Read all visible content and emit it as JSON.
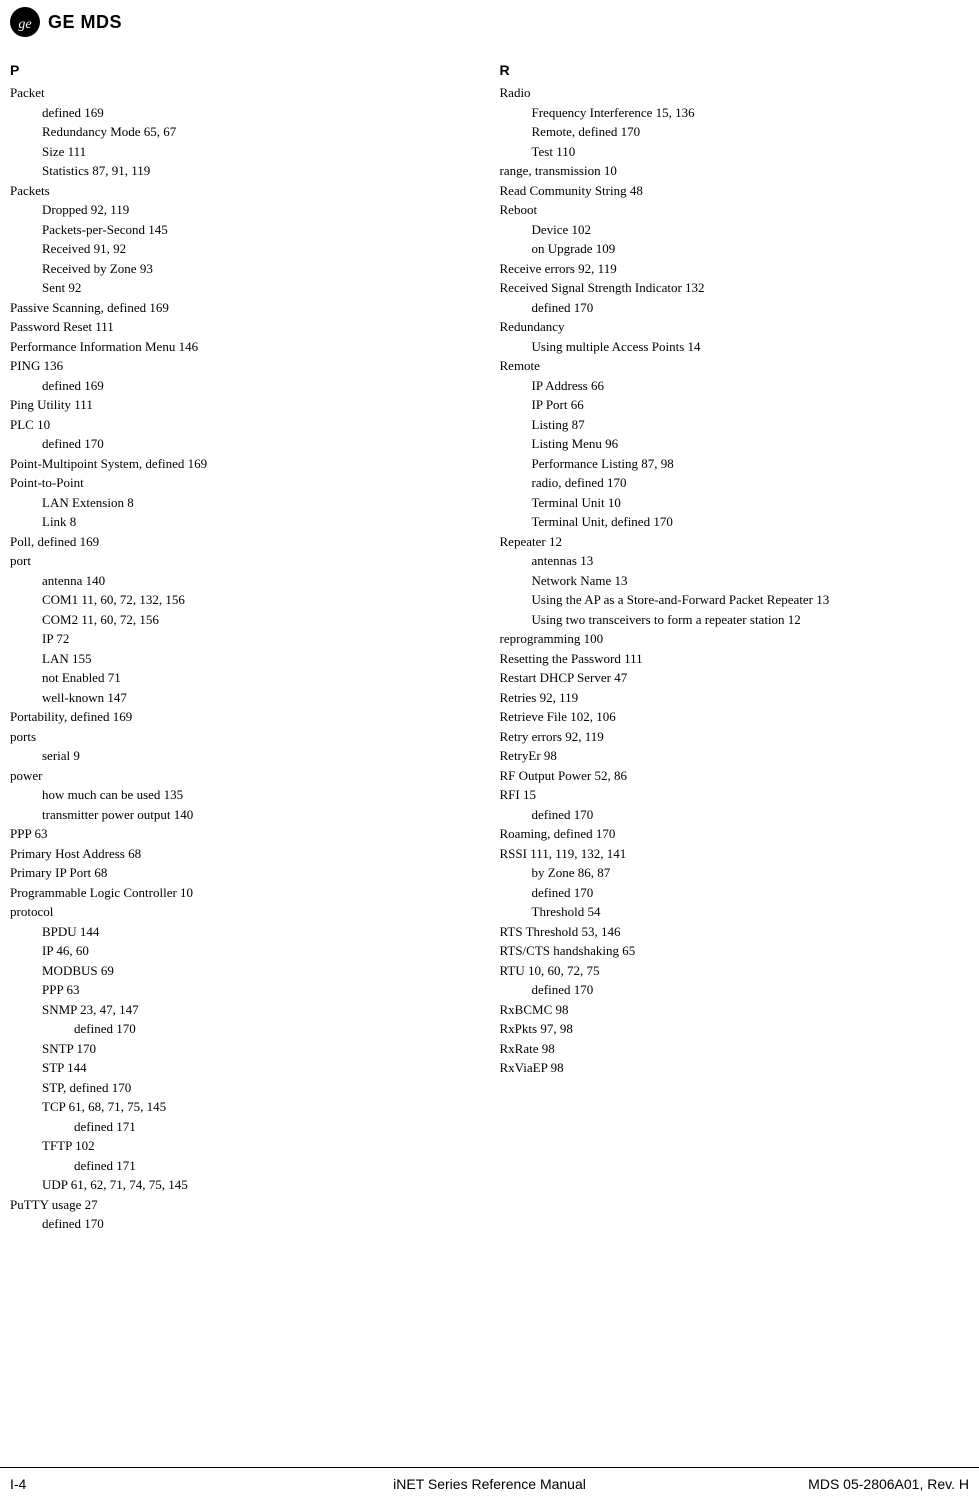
{
  "header": {
    "logo_glyph": "⅊",
    "brand": "GE MDS"
  },
  "columns": {
    "left": {
      "letter": "P",
      "lines": [
        {
          "lvl": 0,
          "t": "Packet"
        },
        {
          "lvl": 1,
          "t": "defined 169"
        },
        {
          "lvl": 1,
          "t": "Redundancy Mode 65, 67"
        },
        {
          "lvl": 1,
          "t": "Size 111"
        },
        {
          "lvl": 1,
          "t": "Statistics 87, 91, 119"
        },
        {
          "lvl": 0,
          "t": "Packets"
        },
        {
          "lvl": 1,
          "t": "Dropped 92, 119"
        },
        {
          "lvl": 1,
          "t": "Packets-per-Second 145"
        },
        {
          "lvl": 1,
          "t": "Received 91, 92"
        },
        {
          "lvl": 1,
          "t": "Received by Zone 93"
        },
        {
          "lvl": 1,
          "t": "Sent 92"
        },
        {
          "lvl": 0,
          "t": "Passive Scanning, defined 169"
        },
        {
          "lvl": 0,
          "t": "Password Reset 111"
        },
        {
          "lvl": 0,
          "t": "Performance Information Menu 146"
        },
        {
          "lvl": 0,
          "t": "PING 136"
        },
        {
          "lvl": 1,
          "t": "defined 169"
        },
        {
          "lvl": 0,
          "t": "Ping Utility 111"
        },
        {
          "lvl": 0,
          "t": "PLC 10"
        },
        {
          "lvl": 1,
          "t": "defined 170"
        },
        {
          "lvl": 0,
          "t": "Point-Multipoint System, defined 169"
        },
        {
          "lvl": 0,
          "t": "Point-to-Point"
        },
        {
          "lvl": 1,
          "t": "LAN Extension 8"
        },
        {
          "lvl": 1,
          "t": "Link 8"
        },
        {
          "lvl": 0,
          "t": "Poll, defined 169"
        },
        {
          "lvl": 0,
          "t": "port"
        },
        {
          "lvl": 1,
          "t": "antenna 140"
        },
        {
          "lvl": 1,
          "t": "COM1 11, 60, 72, 132, 156"
        },
        {
          "lvl": 1,
          "t": "COM2 11, 60, 72, 156"
        },
        {
          "lvl": 1,
          "t": "IP 72"
        },
        {
          "lvl": 1,
          "t": "LAN 155"
        },
        {
          "lvl": 1,
          "t": "not Enabled 71"
        },
        {
          "lvl": 1,
          "t": "well-known 147"
        },
        {
          "lvl": 0,
          "t": "Portability, defined 169"
        },
        {
          "lvl": 0,
          "t": "ports"
        },
        {
          "lvl": 1,
          "t": "serial 9"
        },
        {
          "lvl": 0,
          "t": "power"
        },
        {
          "lvl": 1,
          "t": "how much can be used 135"
        },
        {
          "lvl": 1,
          "t": "transmitter power output 140"
        },
        {
          "lvl": 0,
          "t": "PPP 63"
        },
        {
          "lvl": 0,
          "t": "Primary Host Address 68"
        },
        {
          "lvl": 0,
          "t": "Primary IP Port 68"
        },
        {
          "lvl": 0,
          "t": "Programmable Logic Controller 10"
        },
        {
          "lvl": 0,
          "t": "protocol"
        },
        {
          "lvl": 1,
          "t": "BPDU 144"
        },
        {
          "lvl": 1,
          "t": "IP 46, 60"
        },
        {
          "lvl": 1,
          "t": "MODBUS 69"
        },
        {
          "lvl": 1,
          "t": "PPP 63"
        },
        {
          "lvl": 1,
          "t": "SNMP 23, 47, 147"
        },
        {
          "lvl": 2,
          "t": "defined 170"
        },
        {
          "lvl": 1,
          "t": "SNTP 170"
        },
        {
          "lvl": 1,
          "t": "STP 144"
        },
        {
          "lvl": 1,
          "t": "STP, defined 170"
        },
        {
          "lvl": 1,
          "t": "TCP 61, 68, 71, 75, 145"
        },
        {
          "lvl": 2,
          "t": "defined 171"
        },
        {
          "lvl": 1,
          "t": "TFTP 102"
        },
        {
          "lvl": 2,
          "t": "defined 171"
        },
        {
          "lvl": 1,
          "t": "UDP 61, 62, 71, 74, 75, 145"
        },
        {
          "lvl": 0,
          "t": "PuTTY usage 27"
        },
        {
          "lvl": 1,
          "t": "defined 170"
        }
      ]
    },
    "right": {
      "letter": "R",
      "lines": [
        {
          "lvl": 0,
          "t": "Radio"
        },
        {
          "lvl": 1,
          "t": "Frequency Interference 15, 136"
        },
        {
          "lvl": 1,
          "t": "Remote, defined 170"
        },
        {
          "lvl": 1,
          "t": "Test 110"
        },
        {
          "lvl": 0,
          "t": "range, transmission 10"
        },
        {
          "lvl": 0,
          "t": "Read Community String 48"
        },
        {
          "lvl": 0,
          "t": "Reboot"
        },
        {
          "lvl": 1,
          "t": "Device 102"
        },
        {
          "lvl": 1,
          "t": "on Upgrade 109"
        },
        {
          "lvl": 0,
          "t": "Receive errors 92, 119"
        },
        {
          "lvl": 0,
          "t": "Received Signal Strength Indicator 132"
        },
        {
          "lvl": 1,
          "t": "defined 170"
        },
        {
          "lvl": 0,
          "t": "Redundancy"
        },
        {
          "lvl": 1,
          "t": "Using multiple Access Points 14"
        },
        {
          "lvl": 0,
          "t": "Remote"
        },
        {
          "lvl": 1,
          "t": "IP Address 66"
        },
        {
          "lvl": 1,
          "t": "IP Port 66"
        },
        {
          "lvl": 1,
          "t": "Listing 87"
        },
        {
          "lvl": 1,
          "t": "Listing Menu 96"
        },
        {
          "lvl": 1,
          "t": "Performance Listing 87, 98"
        },
        {
          "lvl": 1,
          "t": "radio, defined 170"
        },
        {
          "lvl": 1,
          "t": "Terminal Unit 10"
        },
        {
          "lvl": 1,
          "t": "Terminal Unit, defined 170"
        },
        {
          "lvl": 0,
          "t": "Repeater 12"
        },
        {
          "lvl": 1,
          "t": "antennas 13"
        },
        {
          "lvl": 1,
          "t": "Network Name 13"
        },
        {
          "lvl": 1,
          "t": "Using the AP as a Store-and-Forward Packet Repeater 13"
        },
        {
          "lvl": 1,
          "t": "Using two transceivers to form a repeater station 12"
        },
        {
          "lvl": 0,
          "t": "reprogramming 100"
        },
        {
          "lvl": 0,
          "t": "Resetting the Password 111"
        },
        {
          "lvl": 0,
          "t": "Restart DHCP Server 47"
        },
        {
          "lvl": 0,
          "t": "Retries 92, 119"
        },
        {
          "lvl": 0,
          "t": "Retrieve File 102, 106"
        },
        {
          "lvl": 0,
          "t": "Retry errors 92, 119"
        },
        {
          "lvl": 0,
          "t": "RetryEr 98"
        },
        {
          "lvl": 0,
          "t": "RF Output Power 52, 86"
        },
        {
          "lvl": 0,
          "t": "RFI 15"
        },
        {
          "lvl": 1,
          "t": "defined 170"
        },
        {
          "lvl": 0,
          "t": "Roaming, defined 170"
        },
        {
          "lvl": 0,
          "t": "RSSI 111, 119, 132, 141"
        },
        {
          "lvl": 1,
          "t": "by Zone 86, 87"
        },
        {
          "lvl": 1,
          "t": "defined 170"
        },
        {
          "lvl": 1,
          "t": "Threshold 54"
        },
        {
          "lvl": 0,
          "t": "RTS Threshold 53, 146"
        },
        {
          "lvl": 0,
          "t": "RTS/CTS handshaking 65"
        },
        {
          "lvl": 0,
          "t": "RTU 10, 60, 72, 75"
        },
        {
          "lvl": 1,
          "t": "defined 170"
        },
        {
          "lvl": 0,
          "t": "RxBCMC 98"
        },
        {
          "lvl": 0,
          "t": "RxPkts 97, 98"
        },
        {
          "lvl": 0,
          "t": "RxRate 98"
        },
        {
          "lvl": 0,
          "t": "RxViaEP 98"
        }
      ]
    }
  },
  "footer": {
    "left": "I-4",
    "center": "iNET Series Reference Manual",
    "right": "MDS 05-2806A01, Rev. H"
  }
}
